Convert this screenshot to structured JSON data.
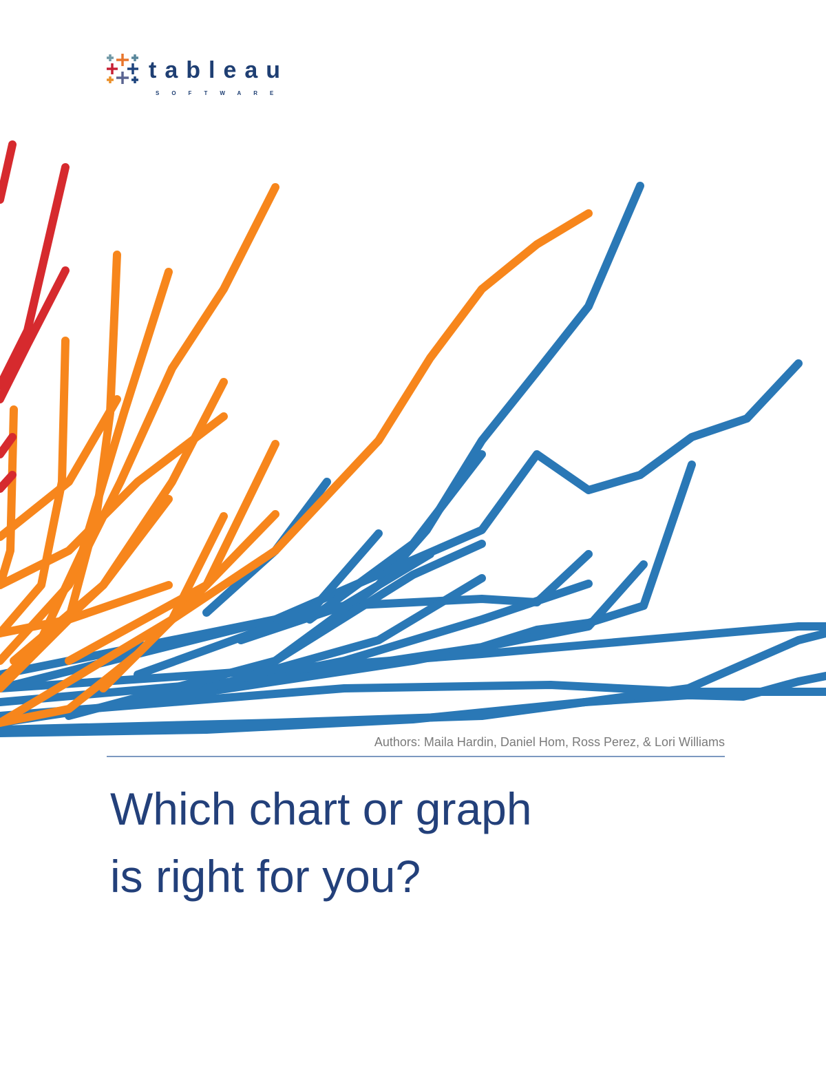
{
  "logo": {
    "name": "tableau",
    "tagline": "SOFTWARE"
  },
  "authors": "Authors: Maila Hardin, Daniel Hom, Ross Perez, & Lori Williams",
  "title": {
    "lines": [
      "Which chart or graph",
      "is right for you?"
    ]
  }
}
